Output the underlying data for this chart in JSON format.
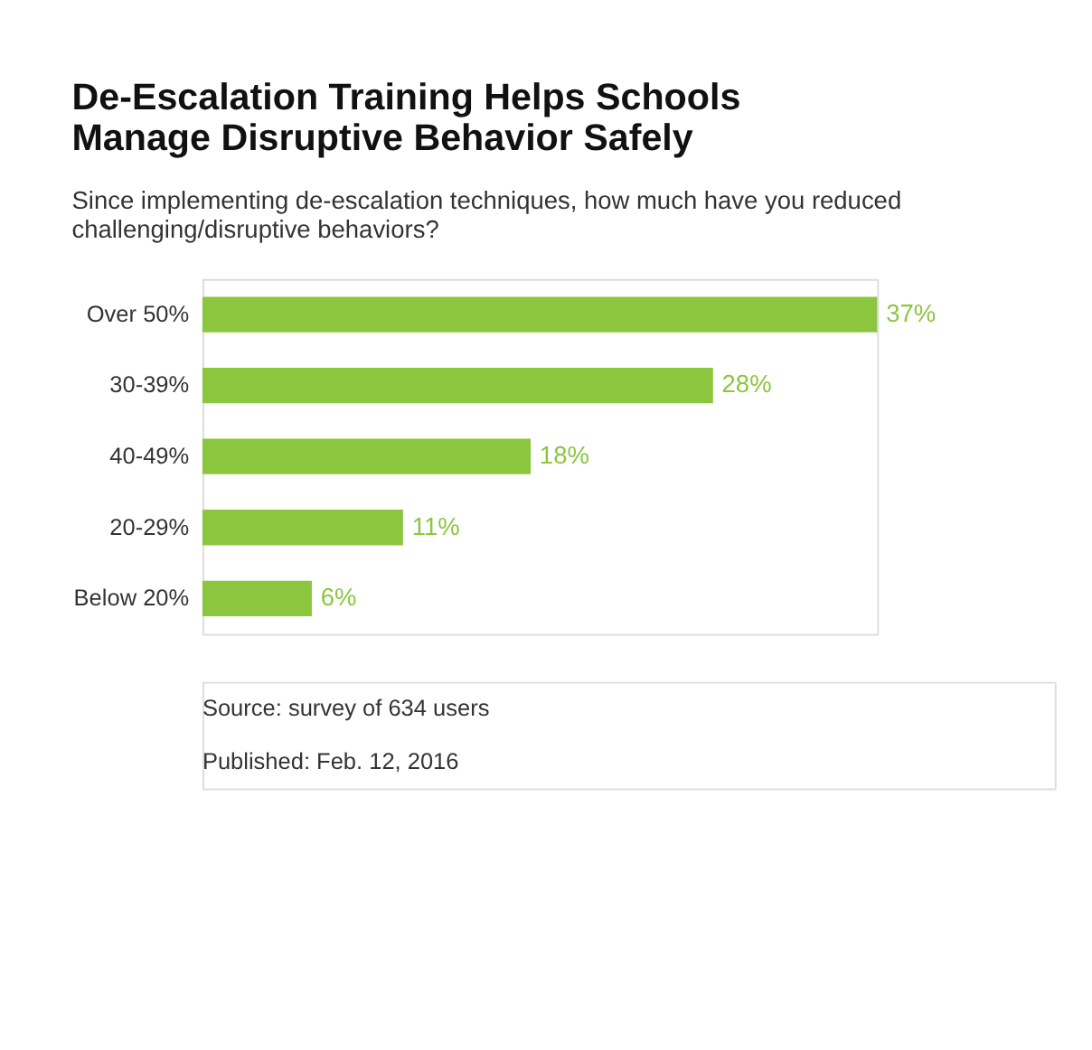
{
  "chart_data": {
    "type": "bar",
    "orientation": "horizontal",
    "title": "De-Escalation Training Helps Schools Manage Disruptive Behavior Safely",
    "subtitle": "Since implementing de-escalation techniques, how much have you reduced challenging/disruptive behaviors?",
    "categories": [
      "Over 50%",
      "30-39%",
      "40-49%",
      "20-29%",
      "Below 20%"
    ],
    "values": [
      37,
      28,
      18,
      11,
      6
    ],
    "value_labels": [
      "37%",
      "28%",
      "18%",
      "11%",
      "6%"
    ],
    "color": "#8cc63f",
    "annotations": [
      "Source: survey of 634 users",
      "Published: Feb. 12, 2016"
    ]
  }
}
